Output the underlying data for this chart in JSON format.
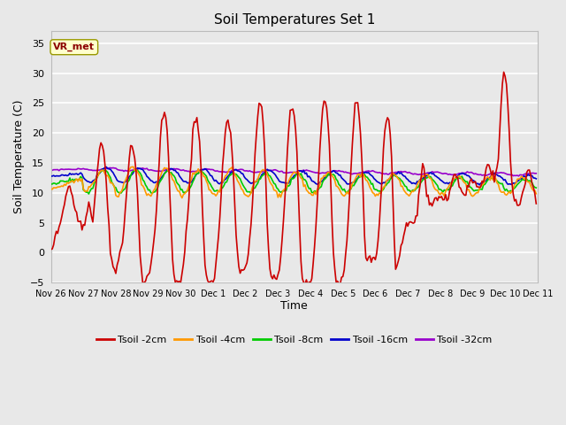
{
  "title": "Soil Temperatures Set 1",
  "xlabel": "Time",
  "ylabel": "Soil Temperature (C)",
  "ylim": [
    -5,
    37
  ],
  "yticks": [
    -5,
    0,
    5,
    10,
    15,
    20,
    25,
    30,
    35
  ],
  "fig_bg_color": "#e8e8e8",
  "plot_bg_color": "#e8e8e8",
  "grid_color": "white",
  "annotation_text": "VR_met",
  "annotation_bg": "#ffffcc",
  "annotation_border": "#999900",
  "colors": {
    "Tsoil -2cm": "#cc0000",
    "Tsoil -4cm": "#ff9900",
    "Tsoil -8cm": "#00cc00",
    "Tsoil -16cm": "#0000cc",
    "Tsoil -32cm": "#9900cc"
  },
  "line_width": 1.2,
  "num_points": 360,
  "xtick_positions": [
    0,
    24,
    48,
    72,
    96,
    120,
    144,
    168,
    192,
    216,
    240,
    264,
    288,
    312,
    336,
    360
  ],
  "xtick_labels": [
    "Nov 26",
    "Nov 27",
    "Nov 28",
    "Nov 29",
    "Nov 30",
    "Dec 1",
    "Dec 2",
    "Dec 3",
    "Dec 4",
    "Dec 5",
    "Dec 6",
    "Dec 7",
    "Dec 8",
    "Dec 9",
    "Dec 10",
    "Dec 11"
  ]
}
